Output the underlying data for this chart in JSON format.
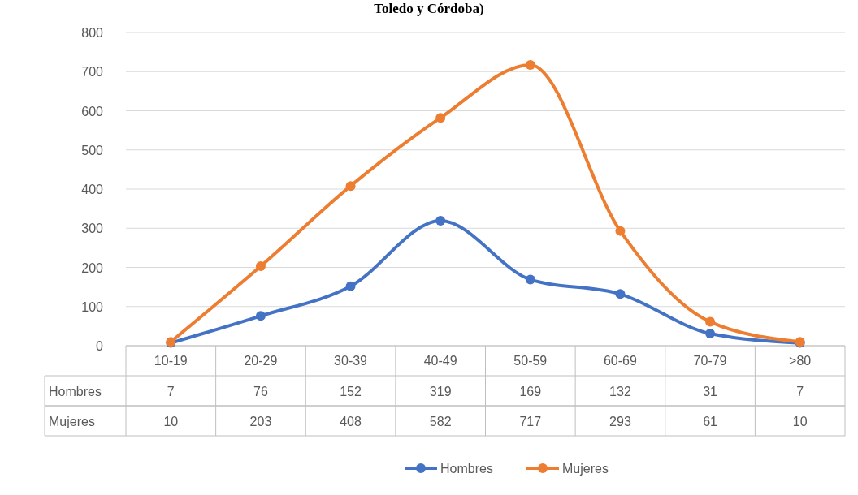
{
  "chart_data": {
    "type": "line",
    "title": "Toledo y Córdoba)",
    "categories": [
      "10-19",
      "20-29",
      "30-39",
      "40-49",
      "50-59",
      "60-69",
      "70-79",
      ">80"
    ],
    "series": [
      {
        "name": "Hombres",
        "color": "#4472c4",
        "values": [
          7,
          76,
          152,
          319,
          169,
          132,
          31,
          7
        ]
      },
      {
        "name": "Mujeres",
        "color": "#ed7d31",
        "values": [
          10,
          203,
          408,
          582,
          717,
          293,
          61,
          10
        ]
      }
    ],
    "ylim": [
      0,
      800
    ],
    "yticks": [
      0,
      100,
      200,
      300,
      400,
      500,
      600,
      700,
      800
    ],
    "grid": "y",
    "legend": "bottom",
    "marker": "circle",
    "line_style": "solid",
    "data_labels": true
  }
}
